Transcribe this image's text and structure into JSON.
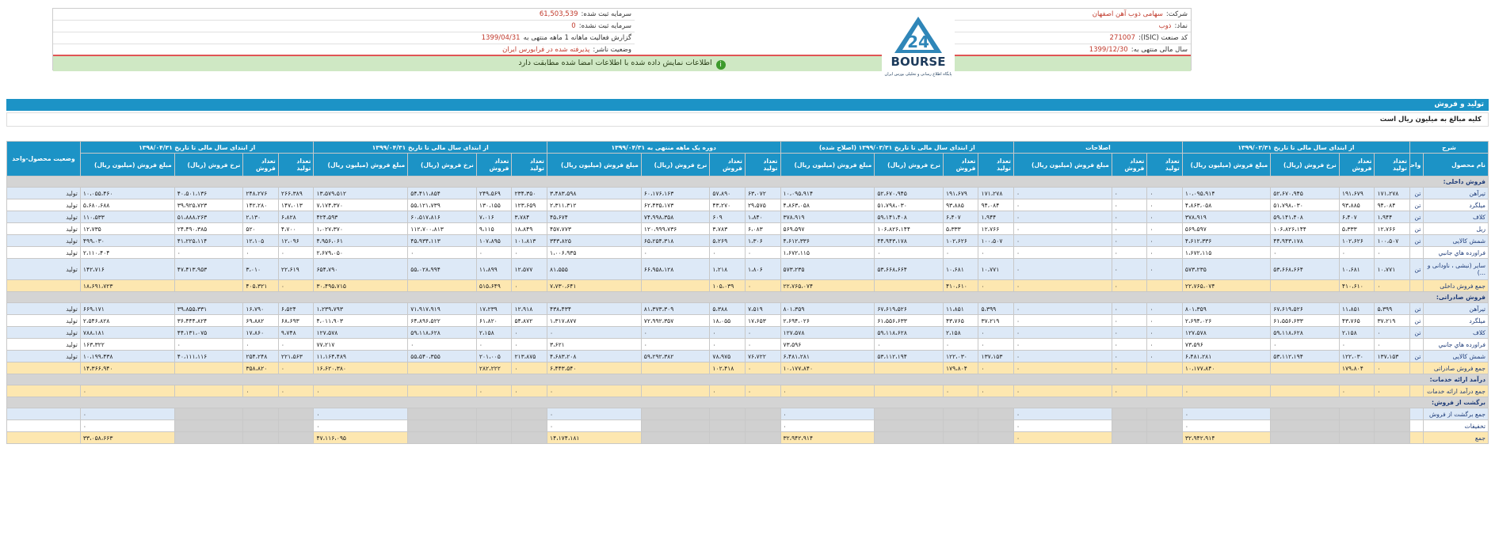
{
  "header": {
    "company_label": "شرکت:",
    "company_value": "سهامی ذوب آهن اصفهان",
    "symbol_label": "نماد:",
    "symbol_value": "ذوب",
    "isic_label": "کد صنعت (ISIC):",
    "isic_value": "271007",
    "fiscal_label": "سال مالی منتهی به:",
    "fiscal_value": "1399/12/30",
    "reg_capital_label": "سرمایه ثبت شده:",
    "reg_capital_value": "61,503,539",
    "unreg_capital_label": "سرمایه ثبت نشده:",
    "unreg_capital_value": "0",
    "report_label": "گزارش فعالیت ماهانه 1 ماهه منتهی به",
    "report_value": "1399/04/31",
    "status_label": "وضعیت ناشر:",
    "status_value": "پذیرفته شده در فرابورس ایران",
    "notice": "اطلاعات نمایش داده شده با اطلاعات امضا شده مطابقت دارد",
    "logo_text": "BOURSE",
    "logo_sub": "پایگاه اطلاع رسانی و تحلیلی بورس ایران",
    "logo_num": "24"
  },
  "section": {
    "title": "تولید و فروش",
    "note": "کلیه مبالغ به میلیون ریال است"
  },
  "table": {
    "h_desc": "شرح",
    "h_product": "نام محصول",
    "h_unit": "واحد",
    "h_status": "وضعیت محصول-واحد",
    "groups": [
      "از ابتدای سال مالی تا تاریخ ۱۳۹۹/۰۳/۳۱",
      "اصلاحات",
      "از ابتدای سال مالی تا تاریخ ۱۳۹۹/۰۳/۳۱ (اصلاح شده)",
      "دوره یک ماهه منتهی به ۱۳۹۹/۰۴/۳۱",
      "از ابتدای سال مالی تا تاریخ ۱۳۹۹/۰۴/۳۱",
      "از ابتدای سال مالی تا تاریخ ۱۳۹۸/۰۴/۳۱"
    ],
    "sub_full": [
      "تعداد تولید",
      "تعداد فروش",
      "نرخ فروش (ریال)",
      "مبلغ فروش (میلیون ریال)"
    ],
    "sub_adj": [
      "تعداد تولید",
      "تعداد فروش",
      "مبلغ فروش (میلیون ریال)"
    ],
    "sections": {
      "domestic": "فروش داخلی:",
      "export": "فروش صادراتی:",
      "services": "درآمد ارائه خدمات:",
      "returns": "برگشت از فروش:"
    },
    "rows": [
      {
        "name": "تیرآهن",
        "unit": "تن",
        "status": "تولید",
        "v": [
          "۱۷۱،۲۷۸",
          "۱۹۱،۶۷۹",
          "۵۲،۶۷۰،۹۴۵",
          "۱۰،۰۹۵،۹۱۴",
          "۰",
          "۰",
          "۰",
          "۱۷۱،۲۷۸",
          "۱۹۱،۶۷۹",
          "۵۲،۶۷۰،۹۴۵",
          "۱۰،۰۹۵،۹۱۴",
          "۶۳،۰۷۲",
          "۵۷،۸۹۰",
          "۶۰،۱۷۶،۱۶۳",
          "۳،۴۸۳،۵۹۸",
          "۲۳۴،۳۵۰",
          "۲۴۹،۵۶۹",
          "۵۴،۴۱۱،۸۵۴",
          "۱۳،۵۷۹،۵۱۲",
          "۲۶۶،۳۸۹",
          "۲۴۸،۲۷۶",
          "۴۰،۵۰۱،۱۳۶",
          "۱۰،۰۵۵،۴۶۰"
        ]
      },
      {
        "name": "میلگرد",
        "unit": "تن",
        "status": "تولید",
        "v": [
          "۹۴،۰۸۴",
          "۹۳،۸۸۵",
          "۵۱،۷۹۸،۰۳۰",
          "۴،۸۶۳،۰۵۸",
          "۰",
          "۰",
          "۰",
          "۹۴،۰۸۴",
          "۹۳،۸۸۵",
          "۵۱،۷۹۸،۰۳۰",
          "۴،۸۶۳،۰۵۸",
          "۲۹،۵۷۵",
          "۴۳،۲۷۰",
          "۶۲،۴۳۵،۱۷۳",
          "۲،۳۱۱،۳۱۲",
          "۱۲۳،۶۵۹",
          "۱۳۰،۱۵۵",
          "۵۵،۱۲۱،۷۳۹",
          "۷،۱۷۴،۳۷۰",
          "۱۴۷،۰۱۳",
          "۱۴۲،۲۸۰",
          "۳۹،۹۲۵،۷۲۳",
          "۵،۶۸۰،۶۸۸"
        ]
      },
      {
        "name": "کلاف",
        "unit": "تن",
        "status": "تولید",
        "v": [
          "۱،۹۴۴",
          "۶،۴۰۷",
          "۵۹،۱۴۱،۴۰۸",
          "۳۷۸،۹۱۹",
          "۰",
          "۰",
          "۰",
          "۱،۹۴۴",
          "۶،۴۰۷",
          "۵۹،۱۴۱،۴۰۸",
          "۳۷۸،۹۱۹",
          "۱،۸۴۰",
          "۶۰۹",
          "۷۴،۹۹۸،۳۵۸",
          "۴۵،۶۷۴",
          "۳،۷۸۴",
          "۷،۰۱۶",
          "۶۰،۵۱۷،۸۱۶",
          "۴۲۴،۵۹۳",
          "۶،۸۲۸",
          "۲،۱۳۰",
          "۵۱،۸۸۸،۲۶۳",
          "۱۱۰،۵۳۳"
        ]
      },
      {
        "name": "ریل",
        "unit": "تن",
        "status": "تولید",
        "v": [
          "۱۲،۷۶۶",
          "۵،۳۳۳",
          "۱۰۶،۸۲۶،۱۴۴",
          "۵۶۹،۵۹۷",
          "۰",
          "۰",
          "۰",
          "۱۲،۷۶۶",
          "۵،۳۳۳",
          "۱۰۶،۸۲۶،۱۴۴",
          "۵۶۹،۵۹۷",
          "۶،۰۸۳",
          "۳،۷۸۳",
          "۱۲۰،۹۹۹،۷۳۶",
          "۴۵۷،۷۷۳",
          "۱۸،۸۴۹",
          "۹،۱۱۵",
          "۱۱۲،۷۰۰،۸۱۳",
          "۱،۰۲۷،۳۷۰",
          "۴،۷۰۰",
          "۵۲۰",
          "۲۴،۴۹۰،۳۸۵",
          "۱۲،۷۳۵"
        ]
      },
      {
        "name": "شمش کالایی",
        "unit": "تن",
        "status": "تولید",
        "v": [
          "۱۰۰،۵۰۷",
          "۱۰۲،۶۲۶",
          "۴۴،۹۴۳،۱۷۸",
          "۴،۶۱۲،۳۳۶",
          "۰",
          "۰",
          "۰",
          "۱۰۰،۵۰۷",
          "۱۰۲،۶۲۶",
          "۴۴،۹۴۳،۱۷۸",
          "۴،۶۱۲،۳۳۶",
          "۱،۳۰۶",
          "۵،۲۶۹",
          "۶۵،۲۵۴،۳۱۸",
          "۳۴۳،۸۲۵",
          "۱۰۱،۸۱۳",
          "۱۰۷،۸۹۵",
          "۴۵،۹۳۴،۱۱۳",
          "۴،۹۵۶،۰۶۱",
          "۱۲،۰۹۶",
          "۱۲،۱۰۵",
          "۴۱،۲۲۵،۱۱۴",
          "۴۹۹،۰۳۰"
        ]
      },
      {
        "name": "فراورده هاي جانبي",
        "unit": "",
        "status": "تولید",
        "v": [
          "۰",
          "۰",
          "۰",
          "۱،۶۷۲،۱۱۵",
          "۰",
          "۰",
          "۰",
          "۰",
          "۰",
          "۰",
          "۱،۶۷۲،۱۱۵",
          "۰",
          "۰",
          "۰",
          "۱،۰۰۶،۹۳۵",
          "۰",
          "۰",
          "۰",
          "۲،۶۷۹،۰۵۰",
          "۰",
          "۰",
          "۰",
          "۲،۱۱۰،۴۰۴"
        ]
      },
      {
        "name": "سایر (نبشی ، ناودانی و ...)",
        "unit": "تن",
        "status": "تولید",
        "tall": true,
        "v": [
          "۱۰،۷۷۱",
          "۱۰،۶۸۱",
          "۵۳،۶۶۸،۶۶۴",
          "۵۷۳،۲۳۵",
          "۰",
          "۰",
          "۰",
          "۱۰،۷۷۱",
          "۱۰،۶۸۱",
          "۵۳،۶۶۸،۶۶۴",
          "۵۷۳،۲۳۵",
          "۱،۸۰۶",
          "۱،۲۱۸",
          "۶۶،۹۵۸،۱۲۸",
          "۸۱،۵۵۵",
          "۱۲،۵۷۷",
          "۱۱،۸۹۹",
          "۵۵،۰۲۸،۹۹۴",
          "۶۵۴،۷۹۰",
          "۲۲،۶۱۹",
          "۳،۰۱۰",
          "۴۷،۴۱۳،۹۵۳",
          "۱۴۲،۷۱۶"
        ]
      },
      {
        "name": "جمع فروش داخلی",
        "unit": "",
        "status": "",
        "total": true,
        "v": [
          "۰",
          "۴۱۰،۶۱۰",
          "",
          "۲۲،۷۶۵،۰۷۴",
          "",
          "۰",
          "۰",
          "۰",
          "۴۱۰،۶۱۰",
          "",
          "۲۲،۷۶۵،۰۷۴",
          "۰",
          "۱۰۵،۰۳۹",
          "",
          "۷،۷۳۰،۶۴۱",
          "۰",
          "۵۱۵،۶۴۹",
          "",
          "۳۰،۴۹۵،۷۱۵",
          "۰",
          "۴۰۵،۳۲۱",
          "",
          "۱۸،۶۹۱،۷۲۳"
        ]
      },
      {
        "name": "تیرآهن",
        "unit": "تن",
        "status": "تولید",
        "export": true,
        "v": [
          "۵،۳۹۹",
          "۱۱،۸۵۱",
          "۶۷،۶۱۹،۵۲۶",
          "۸۰۱،۳۵۹",
          "۰",
          "۰",
          "۰",
          "۵،۳۹۹",
          "۱۱،۸۵۱",
          "۶۷،۶۱۹،۵۲۶",
          "۸۰۱،۳۵۹",
          "۷،۵۱۹",
          "۵،۳۸۸",
          "۸۱،۳۷۳،۳۰۹",
          "۴۳۸،۴۳۴",
          "۱۲،۹۱۸",
          "۱۷،۲۳۹",
          "۷۱،۹۱۷،۹۱۹",
          "۱،۲۳۹،۷۹۳",
          "۶،۵۲۴",
          "۱۶،۷۹۰",
          "۳۹،۸۵۵،۳۳۱",
          "۶۶۹،۱۷۱"
        ]
      },
      {
        "name": "میلگرد",
        "unit": "تن",
        "status": "تولید",
        "v": [
          "۳۷،۲۱۹",
          "۴۳،۷۶۵",
          "۶۱،۵۵۶،۶۳۳",
          "۲،۶۹۴،۰۲۶",
          "۰",
          "۰",
          "۰",
          "۳۷،۲۱۹",
          "۴۳،۷۶۵",
          "۶۱،۵۵۶،۶۳۳",
          "۲،۶۹۴،۰۲۶",
          "۱۷،۶۵۳",
          "۱۸،۰۵۵",
          "۷۲،۹۹۲،۳۵۷",
          "۱،۳۱۷،۸۷۷",
          "۵۴،۸۷۲",
          "۶۱،۸۲۰",
          "۶۴،۸۹۶،۵۲۲",
          "۴،۰۱۱،۹۰۳",
          "۶۸،۶۹۳",
          "۶۹،۸۸۲",
          "۳۶،۴۴۴،۸۲۴",
          "۲،۵۴۶،۸۲۸"
        ]
      },
      {
        "name": "کلاف",
        "unit": "تن",
        "status": "تولید",
        "v": [
          "۰",
          "۲،۱۵۸",
          "۵۹،۱۱۸،۶۲۸",
          "۱۲۷،۵۷۸",
          "۰",
          "۰",
          "۰",
          "۰",
          "۲،۱۵۸",
          "۵۹،۱۱۸،۶۲۸",
          "۱۲۷،۵۷۸",
          "۰",
          "۰",
          "۰",
          "۰",
          "۰",
          "۲،۱۵۸",
          "۵۹،۱۱۸،۶۲۸",
          "۱۲۷،۵۷۸",
          "۹،۷۴۸",
          "۱۷،۸۶۰",
          "۴۴،۱۳۱،۰۷۵",
          "۷۸۸،۱۸۱"
        ]
      },
      {
        "name": "فراورده هاي جانبي",
        "unit": "",
        "status": "تولید",
        "v": [
          "۰",
          "۰",
          "۰",
          "۷۳،۵۹۶",
          "۰",
          "۰",
          "۰",
          "۰",
          "۰",
          "۰",
          "۷۳،۵۹۶",
          "۰",
          "۰",
          "۰",
          "۳،۶۲۱",
          "۰",
          "۰",
          "۰",
          "۷۷،۲۱۷",
          "۰",
          "۰",
          "۰",
          "۱۶۳،۳۲۲"
        ]
      },
      {
        "name": "شمش کالایی",
        "unit": "تن",
        "status": "تولید",
        "v": [
          "۱۳۷،۱۵۳",
          "۱۲۲،۰۳۰",
          "۵۳،۱۱۲،۱۹۴",
          "۶،۴۸۱،۲۸۱",
          "۰",
          "۰",
          "۰",
          "۱۳۷،۱۵۳",
          "۱۲۲،۰۳۰",
          "۵۳،۱۱۲،۱۹۴",
          "۶،۴۸۱،۲۸۱",
          "۷۶،۷۲۲",
          "۷۸،۹۷۵",
          "۵۹،۲۹۲،۳۸۲",
          "۴،۶۸۳،۲۰۸",
          "۲۱۳،۸۷۵",
          "۲۰۱،۰۰۵",
          "۵۵،۵۴۰،۳۵۵",
          "۱۱،۱۶۴،۴۸۹",
          "۲۲۱،۵۶۳",
          "۲۵۴،۲۴۸",
          "۴۰،۱۱۱،۱۱۶",
          "۱۰،۱۹۹،۴۳۸"
        ]
      },
      {
        "name": "جمع فروش صادراتی",
        "unit": "",
        "status": "",
        "total": true,
        "v": [
          "۰",
          "۱۷۹،۸۰۴",
          "",
          "۱۰،۱۷۷،۸۴۰",
          "",
          "۰",
          "۰",
          "۰",
          "۱۷۹،۸۰۴",
          "",
          "۱۰،۱۷۷،۸۴۰",
          "۰",
          "۱۰۲،۴۱۸",
          "",
          "۶،۴۴۳،۵۴۰",
          "۰",
          "۲۸۲،۲۲۲",
          "",
          "۱۶،۶۲۰،۳۸۰",
          "۰",
          "۳۵۸،۸۲۰",
          "",
          "۱۴،۳۶۶،۹۴۰"
        ]
      },
      {
        "name": "جمع درآمد ارائه خدمات",
        "unit": "",
        "status": "",
        "total": true,
        "v": [
          "۰",
          "۰",
          "",
          "۰",
          "",
          "۰",
          "۰",
          "۰",
          "۰",
          "",
          "۰",
          "۰",
          "۰",
          "",
          "۰",
          "۰",
          "۰",
          "",
          "۰",
          "۰",
          "۰",
          "",
          "۰"
        ]
      },
      {
        "name": "جمع برگشت از فروش",
        "unit": "",
        "status": "",
        "v": [
          "",
          "",
          "",
          "۰",
          "",
          "",
          "۰",
          "",
          "",
          "",
          "۰",
          "",
          "",
          "",
          "۰",
          "",
          "",
          "",
          "۰",
          "",
          "",
          "",
          "۰"
        ]
      },
      {
        "name": "تخفیفات",
        "unit": "",
        "status": "",
        "v": [
          "",
          "",
          "",
          "۰",
          "",
          "",
          "۰",
          "",
          "",
          "",
          "۰",
          "",
          "",
          "",
          "۰",
          "",
          "",
          "",
          "۰",
          "",
          "",
          "",
          "۰"
        ]
      },
      {
        "name": "جمع",
        "unit": "",
        "status": "",
        "total": true,
        "v": [
          "",
          "",
          "",
          "۳۲،۹۴۲،۹۱۴",
          "",
          "",
          "۰",
          "",
          "",
          "",
          "۳۲،۹۴۲،۹۱۴",
          "",
          "",
          "",
          "۱۴،۱۷۴،۱۸۱",
          "",
          "",
          "",
          "۴۷،۱۱۶،۰۹۵",
          "",
          "",
          "",
          "۳۳،۰۵۸،۶۶۳"
        ]
      }
    ]
  }
}
